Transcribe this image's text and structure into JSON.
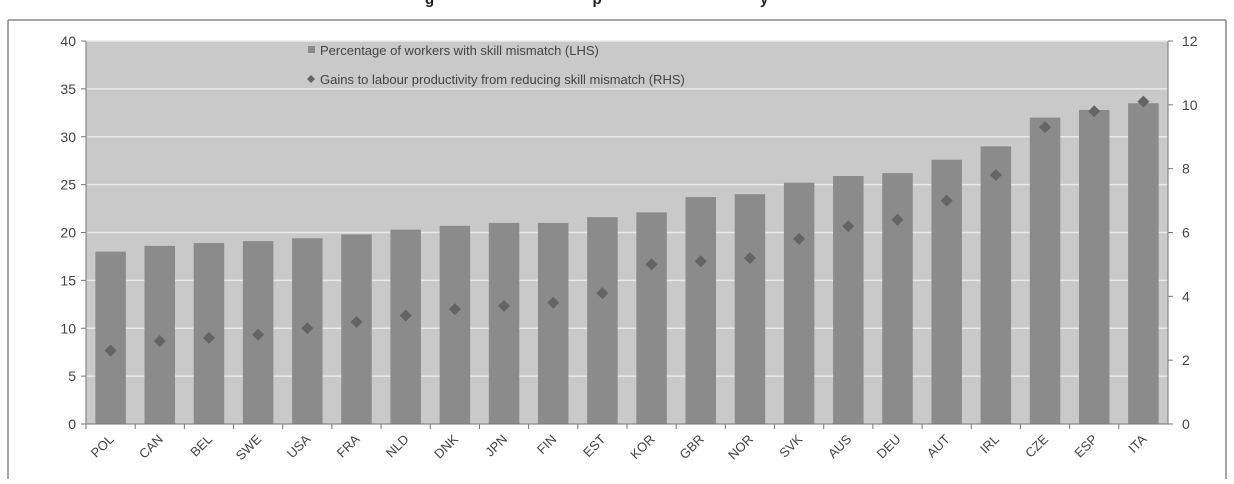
{
  "page": {
    "title_fragment": "g                                      p                                      y"
  },
  "chart_data": {
    "type": "bar",
    "categories": [
      "POL",
      "CAN",
      "BEL",
      "SWE",
      "USA",
      "FRA",
      "NLD",
      "DNK",
      "JPN",
      "FIN",
      "EST",
      "KOR",
      "GBR",
      "NOR",
      "SVK",
      "AUS",
      "DEU",
      "AUT",
      "IRL",
      "CZE",
      "ESP",
      "ITA"
    ],
    "series": [
      {
        "name": "Percentage of workers with skill mismatch (LHS)",
        "type": "bar",
        "axis": "left",
        "values": [
          18.0,
          18.6,
          18.9,
          19.1,
          19.4,
          19.8,
          20.3,
          20.7,
          21.0,
          21.0,
          21.6,
          22.1,
          23.7,
          24.0,
          25.2,
          25.9,
          26.2,
          27.6,
          29.0,
          32.0,
          32.8,
          33.5
        ]
      },
      {
        "name": "Gains to labour productivity from reducing skill mismatch (RHS)",
        "type": "scatter",
        "marker": "diamond",
        "axis": "right",
        "values": [
          2.3,
          2.6,
          2.7,
          2.8,
          3.0,
          3.2,
          3.4,
          3.6,
          3.7,
          3.8,
          4.1,
          5.0,
          5.1,
          5.2,
          5.8,
          6.2,
          6.4,
          7.0,
          7.8,
          9.3,
          9.8,
          10.1
        ]
      }
    ],
    "y_left": {
      "min": 0,
      "max": 40,
      "ticks": [
        0,
        5,
        10,
        15,
        20,
        25,
        30,
        35,
        40
      ]
    },
    "y_right": {
      "min": 0,
      "max": 12,
      "ticks": [
        0,
        2,
        4,
        6,
        8,
        10,
        12
      ]
    },
    "grid": true,
    "legend_position": "top-center",
    "colors": {
      "plot_bg": "#c9c9c9",
      "bar": "#8b8b8b",
      "marker": "#646464",
      "grid": "#e9e9e9",
      "axis": "#777777",
      "text": "#444444",
      "frame": "#8a8a8a"
    }
  }
}
